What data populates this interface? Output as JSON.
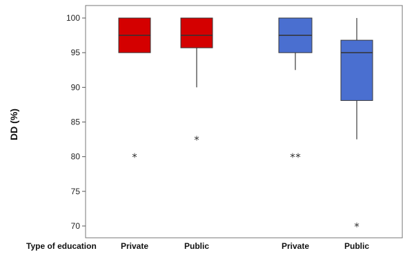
{
  "chart_data": {
    "type": "boxplot",
    "ylabel": "DD (%)",
    "ylim": [
      68.3,
      101.8
    ],
    "yticks": [
      70,
      75,
      80,
      85,
      90,
      95,
      100
    ],
    "x_axis_caption": "Type of education",
    "colors": {
      "group1": "#d40000",
      "group2": "#4a6fd0",
      "median": "#333333",
      "outline": "#3a3a3a"
    },
    "groups": [
      {
        "group": 1,
        "category": "Private",
        "q1": 95,
        "median": 97.5,
        "q3": 100,
        "whisker_low": 95,
        "whisker_high": 100,
        "outliers": [
          80
        ]
      },
      {
        "group": 1,
        "category": "Public",
        "q1": 95.7,
        "median": 97.5,
        "q3": 100,
        "whisker_low": 90,
        "whisker_high": 100,
        "outliers": [
          82.5
        ]
      },
      {
        "group": 2,
        "category": "Private",
        "q1": 95,
        "median": 97.5,
        "q3": 100,
        "whisker_low": 92.5,
        "whisker_high": 100,
        "outliers": [
          80,
          80
        ]
      },
      {
        "group": 2,
        "category": "Public",
        "q1": 88.1,
        "median": 95,
        "q3": 96.8,
        "whisker_low": 82.5,
        "whisker_high": 100,
        "outliers": [
          70
        ]
      }
    ]
  }
}
